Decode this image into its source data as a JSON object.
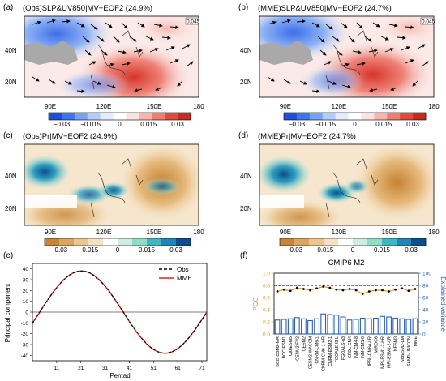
{
  "panels": {
    "a": {
      "label": "(a)",
      "title": "(Obs)SLP&UV850|MV−EOF2 (24.9%)"
    },
    "b": {
      "label": "(b)",
      "title": "(MME)SLP&UV850|MV−EOF2 (24.7%)"
    },
    "c": {
      "label": "(c)",
      "title": "(Obs)Pr|MV−EOF2 (24.9%)"
    },
    "d": {
      "label": "(d)",
      "title": "(MME)Pr|MV−EOF2 (24.7%)"
    },
    "e": {
      "label": "(e)"
    },
    "f": {
      "label": "(f)",
      "title": "CMIP6 M2"
    }
  },
  "map": {
    "lat_labels": [
      "40N",
      "20N"
    ],
    "lon_labels": [
      "90E",
      "120E",
      "150E",
      "180"
    ],
    "vector_ref": "0.045",
    "colorbar_labels": [
      "−0.03",
      "−0.015",
      "0",
      "0.015",
      "0.03"
    ],
    "slp_colors": [
      "#1f4fd8",
      "#3f74ee",
      "#78a3f4",
      "#b4cdf8",
      "#e2ecfc",
      "#ffffff",
      "#fde2e0",
      "#f7b5ae",
      "#ee7d72",
      "#e04a3e",
      "#c62a22"
    ],
    "pr_colors": [
      "#c88436",
      "#dca560",
      "#ecc68f",
      "#f6e2c2",
      "#ffffff",
      "#cdeee0",
      "#8fdcc8",
      "#3fb6c2",
      "#2086b6",
      "#0c4f8c"
    ]
  },
  "chart_data": [
    {
      "type": "line",
      "panel": "e",
      "xlabel": "Pentad",
      "ylabel": "Principal component",
      "x_ticks": [
        11,
        21,
        31,
        41,
        51,
        61,
        71
      ],
      "y_ticks": [
        40,
        30,
        20,
        10,
        0,
        -10,
        -20,
        -30,
        -40
      ],
      "xlim": [
        1,
        73
      ],
      "ylim": [
        -45,
        45
      ],
      "series": [
        {
          "name": "Obs",
          "color": "#000000",
          "style": "dashed"
        },
        {
          "name": "MME",
          "color": "#d62a1d",
          "style": "solid"
        }
      ],
      "curve": {
        "amplitude": 38,
        "peak_pentad": 22,
        "trough_pentad": 59,
        "zero_pentads": [
          4,
          40.5,
          73
        ]
      }
    },
    {
      "type": "bar",
      "panel": "f",
      "title": "CMIP6 M2",
      "ylabel_left": "PCC",
      "ylabel_right": "Explained variance",
      "ylim_left": [
        0,
        1
      ],
      "ylim_right": [
        0,
        100
      ],
      "left_ticks": [
        "0.0",
        "0.2",
        "0.4",
        "0.6",
        "0.8",
        "1.0"
      ],
      "right_ticks": [
        "0",
        "20",
        "40",
        "60",
        "80",
        "100"
      ],
      "reference_line": 0.8,
      "categories": [
        "BCC-CSM2-MR",
        "BCC-ESM1",
        "CanESM5",
        "CESM2-FV2",
        "CESM2",
        "CESM2-WACCM",
        "CNRM-CM6-1",
        "CNRM-CM6-1-HR",
        "CNRM-ESM2-1",
        "FGOALS-f3-L",
        "FGOALS-g3",
        "GFDL-CM4",
        "INM-CM4-8",
        "INM-CM5-0",
        "IPSL-CM6A-LR",
        "MIROC6",
        "MPI-ESM1-2-HR",
        "MPI-ESM1-2-LR",
        "NESM3",
        "NorESM2-LM",
        "SAM0-UNICON",
        "MME"
      ],
      "series": [
        {
          "name": "PCC",
          "color": "#e09a1c",
          "values": [
            0.7,
            0.73,
            0.71,
            0.76,
            0.74,
            0.72,
            0.75,
            0.78,
            0.76,
            0.73,
            0.72,
            0.74,
            0.72,
            0.66,
            0.7,
            0.72,
            0.72,
            0.7,
            0.73,
            0.75,
            0.71,
            0.74
          ]
        },
        {
          "name": "Explained variance",
          "color": "#2b62b0",
          "values": [
            23,
            24,
            25,
            27,
            25,
            22,
            25,
            33,
            32,
            31,
            28,
            23,
            24,
            26,
            25,
            26,
            29,
            28,
            26,
            25,
            24,
            25
          ]
        }
      ]
    }
  ]
}
